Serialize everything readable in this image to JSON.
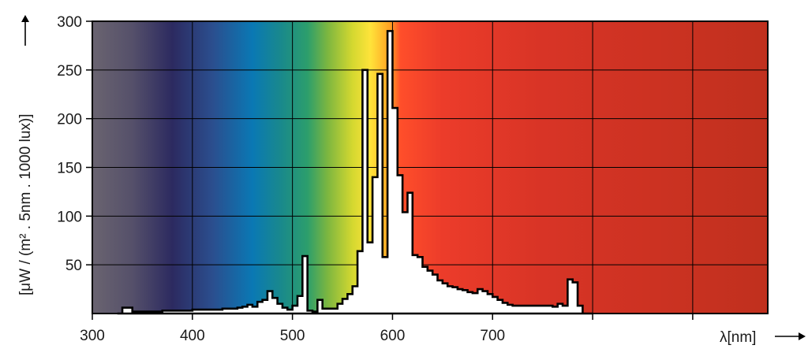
{
  "chart_data": {
    "type": "area",
    "title": "",
    "xlabel": "λ[nm]",
    "ylabel": "[μW / (m² . 5nm . 1000 lux)]",
    "xlim": [
      300,
      975
    ],
    "ylim": [
      0,
      300
    ],
    "x_ticks": [
      300,
      400,
      500,
      600,
      700
    ],
    "y_ticks": [
      50,
      100,
      150,
      200,
      250,
      300
    ],
    "y_tick_top": 300,
    "grid": true,
    "legend": "none",
    "bin_width_nm": 5,
    "spectrum_colors": [
      {
        "nm": 300,
        "color": "#6a6470"
      },
      {
        "nm": 340,
        "color": "#55506a"
      },
      {
        "nm": 380,
        "color": "#2c2a60"
      },
      {
        "nm": 420,
        "color": "#2b4e8e"
      },
      {
        "nm": 460,
        "color": "#0a78b4"
      },
      {
        "nm": 490,
        "color": "#1a8a8a"
      },
      {
        "nm": 515,
        "color": "#2c9e6c"
      },
      {
        "nm": 535,
        "color": "#7cb640"
      },
      {
        "nm": 560,
        "color": "#d4d830"
      },
      {
        "nm": 578,
        "color": "#ffe33a"
      },
      {
        "nm": 598,
        "color": "#ff9f22"
      },
      {
        "nm": 608,
        "color": "#ff4e2a"
      },
      {
        "nm": 650,
        "color": "#ec3c2a"
      },
      {
        "nm": 750,
        "color": "#d83426"
      },
      {
        "nm": 975,
        "color": "#c0301e"
      }
    ],
    "x": [
      325,
      330,
      335,
      340,
      345,
      350,
      355,
      360,
      365,
      370,
      375,
      380,
      385,
      390,
      395,
      400,
      405,
      410,
      415,
      420,
      425,
      430,
      435,
      440,
      445,
      450,
      455,
      460,
      465,
      470,
      475,
      480,
      485,
      490,
      495,
      500,
      505,
      510,
      515,
      520,
      525,
      530,
      535,
      540,
      545,
      550,
      555,
      560,
      565,
      570,
      575,
      580,
      585,
      590,
      595,
      600,
      605,
      610,
      615,
      620,
      625,
      630,
      635,
      640,
      645,
      650,
      655,
      660,
      665,
      670,
      675,
      680,
      685,
      690,
      695,
      700,
      705,
      710,
      715,
      720,
      725,
      730,
      735,
      740,
      745,
      750,
      755,
      760,
      765,
      770,
      775,
      780,
      785,
      790,
      795
    ],
    "values": [
      0,
      6,
      6,
      2,
      2,
      2,
      2,
      2,
      2,
      3,
      3,
      3,
      3,
      3,
      3,
      4,
      4,
      4,
      4,
      4,
      4,
      5,
      5,
      5,
      6,
      7,
      9,
      7,
      12,
      14,
      23,
      16,
      10,
      6,
      4,
      8,
      18,
      59,
      3,
      2,
      14,
      5,
      5,
      5,
      10,
      15,
      20,
      28,
      64,
      250,
      73,
      140,
      246,
      58,
      290,
      211,
      142,
      104,
      124,
      60,
      58,
      48,
      44,
      40,
      34,
      31,
      28,
      27,
      25,
      24,
      22,
      21,
      25,
      23,
      20,
      17,
      14,
      11,
      9,
      8,
      8,
      8,
      8,
      8,
      8,
      8,
      8,
      7,
      10,
      8,
      35,
      32,
      8,
      0,
      0
    ]
  }
}
